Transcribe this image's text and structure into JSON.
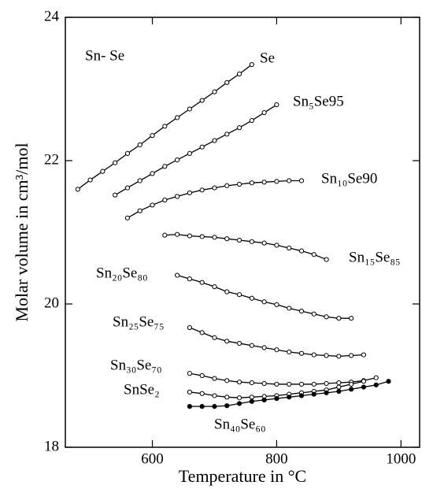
{
  "chart_data": {
    "type": "line",
    "title": "Sn- Se",
    "x_label": "Temperature  in  °C",
    "y_label": "Molar volume in cm³/mol",
    "xlim": [
      460,
      1030
    ],
    "xticks": [
      600,
      800,
      1000
    ],
    "ylim": [
      18,
      24
    ],
    "yticks": [
      18,
      20,
      22,
      24
    ],
    "color": "#000000",
    "series": [
      {
        "name": "Se",
        "marker": "open",
        "x": [
          480,
          500,
          520,
          540,
          560,
          580,
          600,
          620,
          640,
          660,
          680,
          700,
          720,
          740,
          760
        ],
        "values": [
          21.6,
          21.73,
          21.85,
          21.97,
          22.1,
          22.22,
          22.35,
          22.48,
          22.6,
          22.72,
          22.84,
          22.96,
          23.09,
          23.21,
          23.34
        ]
      },
      {
        "name": "Sn₅Se95",
        "marker": "open",
        "x": [
          540,
          560,
          580,
          600,
          620,
          640,
          660,
          680,
          700,
          720,
          740,
          760,
          780,
          800
        ],
        "values": [
          21.52,
          21.62,
          21.72,
          21.82,
          21.92,
          22.01,
          22.1,
          22.19,
          22.28,
          22.37,
          22.46,
          22.56,
          22.67,
          22.78
        ]
      },
      {
        "name": "Sn₁₀Se90",
        "marker": "open",
        "x": [
          560,
          580,
          600,
          620,
          640,
          660,
          680,
          700,
          720,
          740,
          760,
          780,
          800,
          820,
          840
        ],
        "values": [
          21.2,
          21.3,
          21.38,
          21.45,
          21.5,
          21.55,
          21.59,
          21.62,
          21.65,
          21.67,
          21.69,
          21.7,
          21.71,
          21.72,
          21.72
        ]
      },
      {
        "name": "Sn₁₅Se₈₅",
        "marker": "open",
        "x": [
          620,
          640,
          660,
          680,
          700,
          720,
          740,
          760,
          780,
          800,
          820,
          840,
          860,
          880
        ],
        "values": [
          20.96,
          20.97,
          20.95,
          20.94,
          20.93,
          20.91,
          20.89,
          20.87,
          20.85,
          20.82,
          20.78,
          20.74,
          20.69,
          20.62
        ]
      },
      {
        "name": "Sn₂₀Se₈₀",
        "marker": "open",
        "x": [
          640,
          660,
          680,
          700,
          720,
          740,
          760,
          780,
          800,
          820,
          840,
          860,
          880,
          900,
          920
        ],
        "values": [
          20.4,
          20.35,
          20.3,
          20.24,
          20.17,
          20.13,
          20.08,
          20.03,
          19.99,
          19.94,
          19.9,
          19.86,
          19.82,
          19.8,
          19.8
        ]
      },
      {
        "name": "Sn₂₅Se₇₅",
        "marker": "open",
        "x": [
          660,
          680,
          700,
          720,
          740,
          760,
          780,
          800,
          820,
          840,
          860,
          880,
          900,
          920,
          940
        ],
        "values": [
          19.67,
          19.6,
          19.53,
          19.48,
          19.45,
          19.42,
          19.39,
          19.36,
          19.33,
          19.31,
          19.29,
          19.28,
          19.27,
          19.28,
          19.29
        ]
      },
      {
        "name": "Sn₃₀Se₇₀",
        "marker": "open",
        "x": [
          660,
          680,
          700,
          720,
          740,
          760,
          780,
          800,
          820,
          840,
          860,
          880,
          900,
          920,
          940,
          960
        ],
        "values": [
          19.03,
          19.0,
          18.96,
          18.93,
          18.91,
          18.9,
          18.89,
          18.88,
          18.88,
          18.88,
          18.88,
          18.89,
          18.9,
          18.91,
          18.93,
          18.97
        ]
      },
      {
        "name": "SnSe₂",
        "marker": "open",
        "x": [
          660,
          680,
          700,
          720,
          740,
          760,
          780,
          800,
          820,
          840,
          860,
          880,
          900,
          920,
          940
        ],
        "values": [
          18.77,
          18.75,
          18.72,
          18.7,
          18.69,
          18.7,
          18.71,
          18.72,
          18.74,
          18.76,
          18.78,
          18.8,
          18.84,
          18.88,
          18.92
        ]
      },
      {
        "name": "Sn₄₀Se₆₀",
        "marker": "filled",
        "x": [
          660,
          680,
          700,
          720,
          740,
          760,
          780,
          800,
          820,
          840,
          860,
          880,
          900,
          920,
          940,
          960,
          980
        ],
        "values": [
          18.57,
          18.57,
          18.57,
          18.58,
          18.61,
          18.64,
          18.66,
          18.68,
          18.7,
          18.72,
          18.74,
          18.76,
          18.78,
          18.81,
          18.84,
          18.87,
          18.92
        ]
      }
    ]
  }
}
